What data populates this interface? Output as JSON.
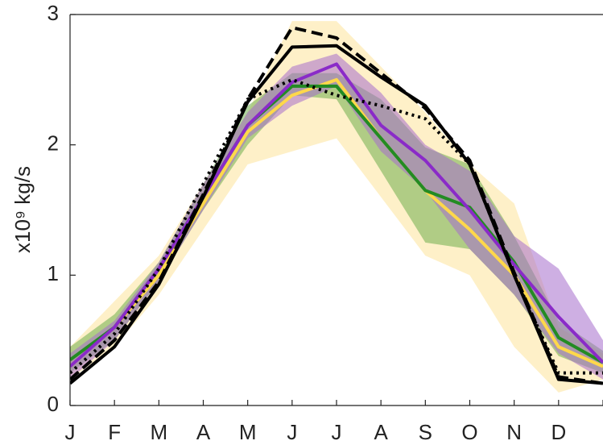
{
  "chart_data": {
    "type": "line",
    "ylabel": "x10⁹ kg/s",
    "categories": [
      "J",
      "F",
      "M",
      "A",
      "M",
      "J",
      "J",
      "A",
      "S",
      "O",
      "N",
      "D",
      null
    ],
    "ylim": [
      0,
      3
    ],
    "yticks": [
      0,
      1,
      2,
      3
    ],
    "bands": [
      {
        "color": "#fde39a",
        "upper": [
          0.45,
          0.8,
          1.15,
          1.7,
          2.25,
          2.95,
          2.95,
          2.6,
          2.25,
          1.85,
          1.55,
          0.6,
          0.4
        ],
        "lower": [
          0.2,
          0.45,
          0.85,
          1.35,
          1.85,
          1.95,
          2.05,
          1.6,
          1.15,
          1.0,
          0.45,
          0.1,
          0.2
        ]
      },
      {
        "color": "#6fae4f",
        "upper": [
          0.45,
          0.7,
          1.1,
          1.7,
          2.3,
          2.55,
          2.55,
          2.35,
          1.98,
          1.85,
          1.3,
          0.65,
          0.42
        ],
        "lower": [
          0.25,
          0.5,
          0.95,
          1.5,
          2.0,
          2.38,
          2.35,
          1.8,
          1.25,
          1.2,
          0.85,
          0.38,
          0.25
        ]
      },
      {
        "color": "#a66dcc",
        "upper": [
          0.4,
          0.65,
          1.1,
          1.7,
          2.25,
          2.6,
          2.7,
          2.4,
          2.0,
          1.8,
          1.3,
          1.05,
          0.5
        ],
        "lower": [
          0.2,
          0.5,
          0.95,
          1.5,
          2.05,
          2.3,
          2.45,
          1.95,
          1.65,
          1.2,
          0.85,
          0.4,
          0.2
        ]
      }
    ],
    "series": [
      {
        "color": "#ffd84a",
        "dash": "solid",
        "values": [
          0.3,
          0.6,
          1.0,
          1.55,
          2.1,
          2.38,
          2.5,
          2.05,
          1.65,
          1.35,
          1.0,
          0.45,
          0.3
        ]
      },
      {
        "color": "#238b23",
        "dash": "solid",
        "values": [
          0.35,
          0.6,
          1.05,
          1.6,
          2.15,
          2.45,
          2.45,
          2.05,
          1.65,
          1.52,
          1.1,
          0.52,
          0.33
        ]
      },
      {
        "color": "#8a2bc8",
        "dash": "solid",
        "values": [
          0.3,
          0.6,
          1.05,
          1.6,
          2.15,
          2.48,
          2.62,
          2.15,
          1.88,
          1.5,
          1.08,
          0.68,
          0.33
        ]
      },
      {
        "color": "#000000",
        "dash": "dotted",
        "values": [
          0.25,
          0.55,
          1.05,
          1.7,
          2.35,
          2.5,
          2.38,
          2.3,
          2.2,
          1.85,
          1.0,
          0.25,
          0.25
        ]
      },
      {
        "color": "#000000",
        "dash": "dashed",
        "values": [
          0.2,
          0.5,
          0.95,
          1.62,
          2.35,
          2.9,
          2.82,
          2.55,
          2.28,
          1.88,
          1.02,
          0.22,
          0.17
        ]
      },
      {
        "color": "#000000",
        "dash": "solid",
        "values": [
          0.17,
          0.45,
          0.93,
          1.6,
          2.33,
          2.75,
          2.76,
          2.52,
          2.3,
          1.85,
          1.0,
          0.2,
          0.17
        ]
      }
    ]
  }
}
